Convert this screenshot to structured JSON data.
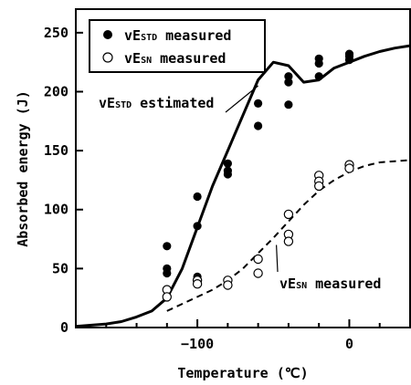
{
  "chart_data": {
    "type": "scatter",
    "xlabel": "Temperature (℃)",
    "ylabel": "Absorbed energy (J)",
    "xlim": [
      -180,
      40
    ],
    "ylim": [
      0,
      270
    ],
    "xticks": [
      -100,
      0
    ],
    "yticks": [
      0,
      50,
      100,
      150,
      200,
      250
    ],
    "legend_position": "top-left",
    "legend": [
      {
        "main": "vE",
        "sub": "STD",
        "rest": " measured",
        "marker": "filled-circle"
      },
      {
        "main": "vE",
        "sub": "SN",
        "rest": " measured",
        "marker": "open-circle"
      }
    ],
    "series": [
      {
        "marker": "filled-circle",
        "points": [
          [
            -120,
            69
          ],
          [
            -120,
            50
          ],
          [
            -120,
            46
          ],
          [
            -100,
            111
          ],
          [
            -100,
            86
          ],
          [
            -100,
            43
          ],
          [
            -80,
            139
          ],
          [
            -80,
            133
          ],
          [
            -80,
            130
          ],
          [
            -60,
            190
          ],
          [
            -60,
            171
          ],
          [
            -40,
            213
          ],
          [
            -40,
            208
          ],
          [
            -40,
            189
          ],
          [
            -20,
            228
          ],
          [
            -20,
            224
          ],
          [
            -20,
            213
          ],
          [
            0,
            232
          ],
          [
            0,
            230
          ],
          [
            0,
            227
          ]
        ]
      },
      {
        "marker": "open-circle",
        "points": [
          [
            -120,
            32
          ],
          [
            -120,
            26
          ],
          [
            -100,
            40
          ],
          [
            -100,
            37
          ],
          [
            -80,
            40
          ],
          [
            -80,
            36
          ],
          [
            -60,
            58
          ],
          [
            -60,
            46
          ],
          [
            -40,
            96
          ],
          [
            -40,
            79
          ],
          [
            -40,
            73
          ],
          [
            -20,
            129
          ],
          [
            -20,
            124
          ],
          [
            -20,
            120
          ],
          [
            0,
            138
          ],
          [
            0,
            135
          ]
        ]
      },
      {
        "line": "solid",
        "points": [
          [
            -180,
            1
          ],
          [
            -160,
            3
          ],
          [
            -150,
            5
          ],
          [
            -140,
            9
          ],
          [
            -130,
            14
          ],
          [
            -120,
            25
          ],
          [
            -110,
            50
          ],
          [
            -100,
            85
          ],
          [
            -90,
            120
          ],
          [
            -80,
            150
          ],
          [
            -70,
            180
          ],
          [
            -60,
            210
          ],
          [
            -50,
            225
          ],
          [
            -40,
            222
          ],
          [
            -30,
            208
          ],
          [
            -20,
            210
          ],
          [
            -10,
            220
          ],
          [
            0,
            225
          ],
          [
            10,
            230
          ],
          [
            20,
            234
          ],
          [
            30,
            237
          ],
          [
            40,
            239
          ]
        ]
      },
      {
        "line": "dashed",
        "points": [
          [
            -120,
            14
          ],
          [
            -110,
            20
          ],
          [
            -100,
            26
          ],
          [
            -90,
            32
          ],
          [
            -80,
            40
          ],
          [
            -70,
            50
          ],
          [
            -60,
            63
          ],
          [
            -50,
            76
          ],
          [
            -40,
            90
          ],
          [
            -30,
            104
          ],
          [
            -20,
            116
          ],
          [
            -10,
            125
          ],
          [
            0,
            132
          ],
          [
            10,
            137
          ],
          [
            20,
            140
          ],
          [
            30,
            141
          ],
          [
            40,
            142
          ]
        ]
      }
    ],
    "annotations": [
      {
        "main": "vE",
        "sub": "STD",
        "rest": " estimated",
        "target": [
          -60,
          205
        ]
      },
      {
        "main": "vE",
        "sub": "SN",
        "rest": " measured",
        "target": [
          -48,
          70
        ]
      }
    ]
  }
}
